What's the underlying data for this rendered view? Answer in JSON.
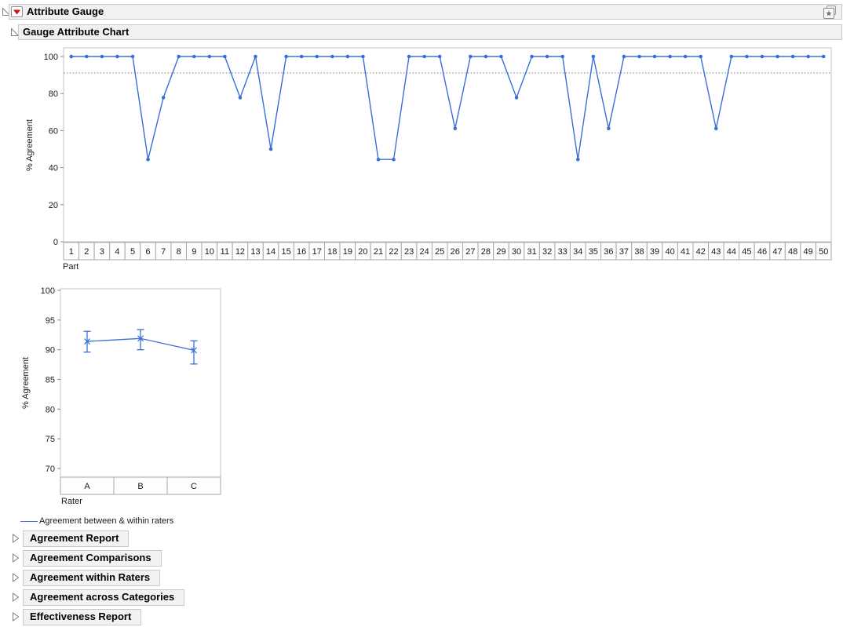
{
  "window": {
    "root_title": "Attribute Gauge",
    "chart_section_title": "Gauge Attribute Chart"
  },
  "icons": {
    "disclosure_open": "open-triangle",
    "disclosure_closed": "right-triangle",
    "red_triangle": "▼",
    "corner_star": "★"
  },
  "legend": {
    "label": "Agreement between & within raters"
  },
  "sections": [
    {
      "label": "Agreement Report"
    },
    {
      "label": "Agreement Comparisons"
    },
    {
      "label": "Agreement within Raters"
    },
    {
      "label": "Agreement across Categories"
    },
    {
      "label": "Effectiveness Report"
    }
  ],
  "chart_data": [
    {
      "type": "line",
      "title": "Gauge Attribute Chart - by Part",
      "xlabel": "Part",
      "ylabel": "% Agreement",
      "ylim": [
        0,
        100
      ],
      "yticks": [
        0,
        20,
        40,
        60,
        80,
        100
      ],
      "categories": [
        1,
        2,
        3,
        4,
        5,
        6,
        7,
        8,
        9,
        10,
        11,
        12,
        13,
        14,
        15,
        16,
        17,
        18,
        19,
        20,
        21,
        22,
        23,
        24,
        25,
        26,
        27,
        28,
        29,
        30,
        31,
        32,
        33,
        34,
        35,
        36,
        37,
        38,
        39,
        40,
        41,
        42,
        43,
        44,
        45,
        46,
        47,
        48,
        49,
        50
      ],
      "series": [
        {
          "name": "Agreement between & within raters",
          "values": [
            100,
            100,
            100,
            100,
            100,
            44.4,
            77.8,
            100,
            100,
            100,
            100,
            77.8,
            100,
            50,
            100,
            100,
            100,
            100,
            100,
            100,
            44.4,
            44.4,
            100,
            100,
            100,
            61.1,
            100,
            100,
            100,
            77.8,
            100,
            100,
            100,
            44.4,
            100,
            61.1,
            100,
            100,
            100,
            100,
            100,
            100,
            61.1,
            100,
            100,
            100,
            100,
            100,
            100,
            100
          ]
        }
      ],
      "reference_line": 91.1,
      "line_color": "#3b6fd8",
      "grid": false,
      "legend_position": "bottom-left of report"
    },
    {
      "type": "line-errorbar",
      "title": "Gauge Attribute Chart - by Rater",
      "xlabel": "Rater",
      "ylabel": "% Agreement",
      "ylim": [
        70,
        100
      ],
      "yticks": [
        70,
        75,
        80,
        85,
        90,
        95,
        100
      ],
      "categories": [
        "A",
        "B",
        "C"
      ],
      "series": [
        {
          "name": "Agreement between & within raters",
          "values": [
            91.4,
            91.9,
            89.9
          ],
          "lower": [
            89.6,
            90.0,
            87.6
          ],
          "upper": [
            93.1,
            93.4,
            91.5
          ]
        }
      ],
      "line_color": "#3b6fd8",
      "grid": false
    }
  ]
}
